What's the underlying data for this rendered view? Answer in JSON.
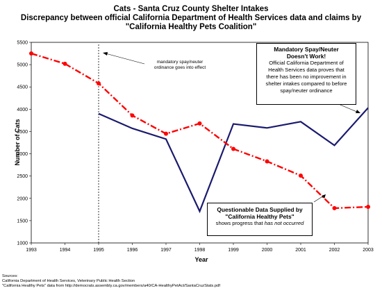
{
  "titles": {
    "line1": "Cats - Santa Cruz County Shelter Intakes",
    "line2": "Discrepancy between official California Department of Health Services data and claims by",
    "line3": "\"California Healthy Pets Coalition\""
  },
  "annotations": {
    "mandatory_note_line1": "mandatory spay/neuter",
    "mandatory_note_line2": "ordinance goes into effect",
    "box1_head1": "Mandatory Spay/Neuter",
    "box1_head2": "Doesn't Work!",
    "box1_line1": "Official California Department of",
    "box1_line2": "Health Services data proves that",
    "box1_line3": "there has been no improvement in",
    "box1_line4": "shelter intakes compared to before",
    "box1_line5": "spay/neuter ordinance",
    "box2_head1": "Questionable Data Supplied by",
    "box2_head2": "\"California Healthy Pets\"",
    "box2_line1_a": "shows progress that ",
    "box2_line1_b": "has not occurred"
  },
  "sources": {
    "label": "Sources:",
    "line1": "California Department of Health Services, Veterinary Public Health Section",
    "line2": "\"California Healthy Pets\" data from http://democrats.assembly.ca.gov/members/a40/CA-HealthyPetAct/SantaCruzStats.pdf"
  },
  "chart_data": {
    "type": "line",
    "xlabel": "Year",
    "ylabel": "Number of Cats",
    "xlim": [
      1993,
      2003
    ],
    "ylim": [
      1000,
      5500
    ],
    "x_ticks": [
      1993,
      1994,
      1995,
      1996,
      1997,
      1998,
      1999,
      2000,
      2001,
      2002,
      2003
    ],
    "y_ticks": [
      1000,
      1500,
      2000,
      2500,
      3000,
      3500,
      4000,
      4500,
      5000,
      5500
    ],
    "grid": false,
    "reference_line_x": 1995,
    "colors": {
      "official": "#1a1a6e",
      "claimed": "#ff0000"
    },
    "series": [
      {
        "x": [
          1995,
          1996,
          1997,
          1998,
          1999,
          2000,
          2001,
          2002,
          2003
        ],
        "values": [
          3900,
          3570,
          3330,
          1710,
          3670,
          3580,
          3720,
          3190,
          4030
        ]
      },
      {
        "x": [
          1993,
          1994,
          1995,
          1996,
          1997,
          1998,
          1999,
          2000,
          2001,
          2002,
          2003
        ],
        "values": [
          5250,
          5020,
          4580,
          3860,
          3450,
          3680,
          3110,
          2830,
          2510,
          1780,
          1810
        ]
      }
    ]
  }
}
